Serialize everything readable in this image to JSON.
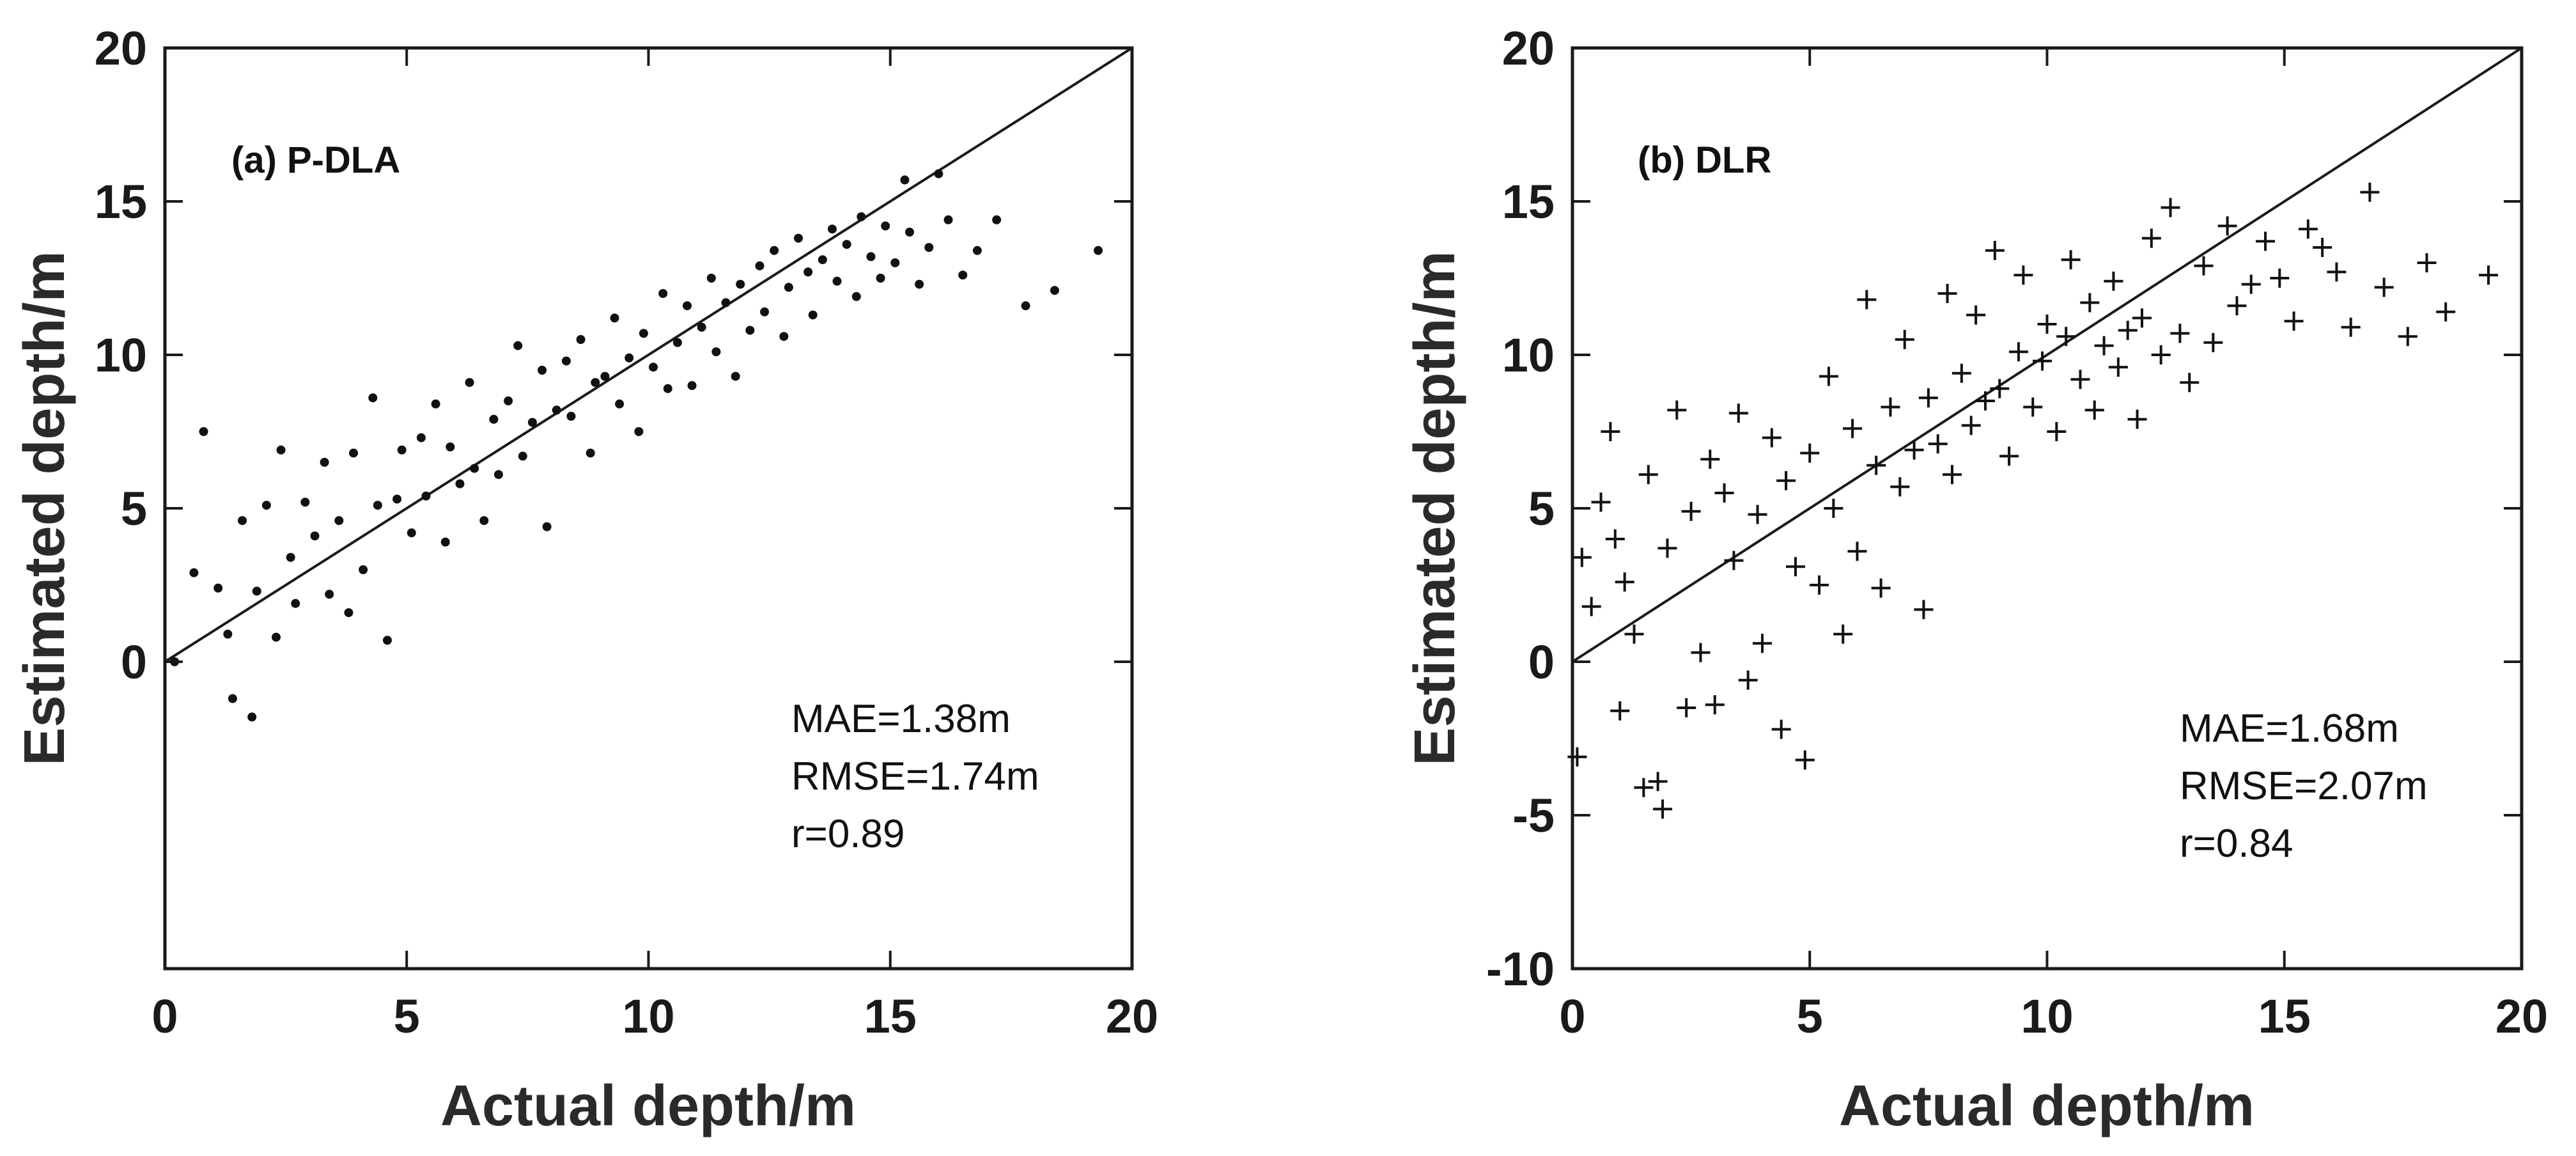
{
  "figure_caption": "",
  "chart_data": [
    {
      "type": "scatter",
      "title": "(a) P-DLA",
      "xlabel": "Actual depth/m",
      "ylabel": "Estimated depth/m",
      "xlim": [
        0,
        20
      ],
      "ylim": [
        -10,
        20
      ],
      "xticks": [
        0,
        5,
        10,
        15,
        20
      ],
      "yticks": [
        0,
        5,
        10,
        15,
        20
      ],
      "grid": false,
      "marker": "dot",
      "reference_line": {
        "type": "1:1",
        "from": [
          0,
          0
        ],
        "to": [
          20,
          20
        ]
      },
      "annotations": [
        "MAE=1.38m",
        "RMSE=1.74m",
        "r=0.89"
      ],
      "stats": {
        "MAE": 1.38,
        "RMSE": 1.74,
        "r": 0.89
      },
      "series": [
        {
          "name": "P-DLA",
          "x": [
            0.2,
            0.6,
            0.8,
            1.1,
            1.3,
            1.4,
            1.6,
            1.8,
            1.9,
            2.1,
            2.3,
            2.4,
            2.6,
            2.7,
            2.9,
            3.1,
            3.3,
            3.4,
            3.6,
            3.8,
            3.9,
            4.1,
            4.3,
            4.4,
            4.6,
            4.8,
            4.9,
            5.1,
            5.3,
            5.4,
            5.6,
            5.8,
            5.9,
            6.1,
            6.3,
            6.4,
            6.6,
            6.8,
            6.9,
            7.1,
            7.3,
            7.4,
            7.6,
            7.8,
            7.9,
            8.1,
            8.3,
            8.4,
            8.6,
            8.8,
            8.9,
            9.1,
            9.3,
            9.4,
            9.6,
            9.8,
            9.9,
            10.1,
            10.3,
            10.4,
            10.6,
            10.8,
            10.9,
            11.1,
            11.3,
            11.4,
            11.6,
            11.8,
            11.9,
            12.1,
            12.3,
            12.4,
            12.6,
            12.8,
            12.9,
            13.1,
            13.3,
            13.4,
            13.6,
            13.8,
            13.9,
            14.1,
            14.3,
            14.4,
            14.6,
            14.8,
            14.9,
            15.1,
            15.3,
            15.4,
            15.6,
            15.8,
            16.0,
            16.2,
            16.5,
            16.8,
            17.2,
            17.8,
            18.4,
            19.3
          ],
          "y": [
            0.0,
            2.9,
            7.5,
            2.4,
            0.9,
            -1.2,
            4.6,
            -1.8,
            2.3,
            5.1,
            0.8,
            6.9,
            3.4,
            1.9,
            5.2,
            4.1,
            6.5,
            2.2,
            4.6,
            1.6,
            6.8,
            3.0,
            8.6,
            5.1,
            0.7,
            5.3,
            6.9,
            4.2,
            7.3,
            5.4,
            8.4,
            3.9,
            7.0,
            5.8,
            9.1,
            6.3,
            4.6,
            7.9,
            6.1,
            8.5,
            10.3,
            6.7,
            7.8,
            9.5,
            4.4,
            8.2,
            9.8,
            8.0,
            10.5,
            6.8,
            9.1,
            9.3,
            11.2,
            8.4,
            9.9,
            7.5,
            10.7,
            9.6,
            12.0,
            8.9,
            10.4,
            11.6,
            9.0,
            10.9,
            12.5,
            10.1,
            11.7,
            9.3,
            12.3,
            10.8,
            12.9,
            11.4,
            13.4,
            10.6,
            12.2,
            13.8,
            12.7,
            11.3,
            13.1,
            14.1,
            12.4,
            13.6,
            11.9,
            14.5,
            13.2,
            12.5,
            14.2,
            13.0,
            15.7,
            14.0,
            12.3,
            13.5,
            15.9,
            14.4,
            12.6,
            13.4,
            14.4,
            11.6,
            12.1,
            13.4
          ]
        }
      ]
    },
    {
      "type": "scatter",
      "title": "(b) DLR",
      "xlabel": "Actual depth/m",
      "ylabel": "Estimated depth/m",
      "xlim": [
        0,
        20
      ],
      "ylim": [
        -10,
        20
      ],
      "xticks": [
        0,
        5,
        10,
        15,
        20
      ],
      "yticks": [
        -10,
        -5,
        0,
        5,
        10,
        15,
        20
      ],
      "grid": false,
      "marker": "plus",
      "reference_line": {
        "type": "1:1",
        "from": [
          0,
          0
        ],
        "to": [
          20,
          20
        ]
      },
      "annotations": [
        "MAE=1.68m",
        "RMSE=2.07m",
        "r=0.84"
      ],
      "stats": {
        "MAE": 1.68,
        "RMSE": 2.07,
        "r": 0.84
      },
      "series": [
        {
          "name": "DLR",
          "x": [
            0.1,
            0.2,
            0.4,
            0.6,
            0.8,
            0.9,
            1.0,
            1.1,
            1.3,
            1.5,
            1.6,
            1.8,
            1.9,
            2.0,
            2.2,
            2.4,
            2.5,
            2.7,
            2.9,
            3.0,
            3.2,
            3.4,
            3.5,
            3.7,
            3.9,
            4.0,
            4.2,
            4.4,
            4.5,
            4.7,
            4.9,
            5.0,
            5.2,
            5.4,
            5.5,
            5.7,
            5.9,
            6.0,
            6.2,
            6.4,
            6.5,
            6.7,
            6.9,
            7.0,
            7.2,
            7.4,
            7.5,
            7.7,
            7.9,
            8.0,
            8.2,
            8.4,
            8.5,
            8.7,
            8.9,
            9.0,
            9.2,
            9.4,
            9.5,
            9.7,
            9.9,
            10.0,
            10.2,
            10.4,
            10.5,
            10.7,
            10.9,
            11.0,
            11.2,
            11.4,
            11.5,
            11.7,
            11.9,
            12.0,
            12.2,
            12.4,
            12.6,
            12.8,
            13.0,
            13.3,
            13.5,
            13.8,
            14.0,
            14.3,
            14.6,
            14.9,
            15.2,
            15.5,
            15.8,
            16.1,
            16.4,
            16.8,
            17.1,
            17.6,
            18.0,
            18.4,
            19.3
          ],
          "y": [
            -3.1,
            3.4,
            1.8,
            5.2,
            7.5,
            4.0,
            -1.6,
            2.6,
            0.9,
            -4.1,
            6.1,
            -3.9,
            -4.8,
            3.7,
            8.2,
            -1.5,
            4.9,
            0.3,
            6.6,
            -1.4,
            5.5,
            3.3,
            8.1,
            -0.6,
            4.8,
            0.6,
            7.3,
            -2.2,
            5.9,
            3.1,
            -3.2,
            6.8,
            2.5,
            9.3,
            5.0,
            0.9,
            7.6,
            3.6,
            11.8,
            6.4,
            2.4,
            8.3,
            5.7,
            10.5,
            6.9,
            1.7,
            8.6,
            7.1,
            12.0,
            6.1,
            9.4,
            7.7,
            11.3,
            8.5,
            13.4,
            8.9,
            6.7,
            10.1,
            12.6,
            8.3,
            9.8,
            11.0,
            7.5,
            10.6,
            13.1,
            9.2,
            11.7,
            8.2,
            10.3,
            12.4,
            9.6,
            10.8,
            7.9,
            11.2,
            13.8,
            10.0,
            14.8,
            10.7,
            9.1,
            12.9,
            10.4,
            14.2,
            11.6,
            12.3,
            13.7,
            12.5,
            11.1,
            14.1,
            13.5,
            12.7,
            10.9,
            15.3,
            12.2,
            10.6,
            13.0,
            11.4,
            12.6
          ]
        }
      ]
    }
  ]
}
